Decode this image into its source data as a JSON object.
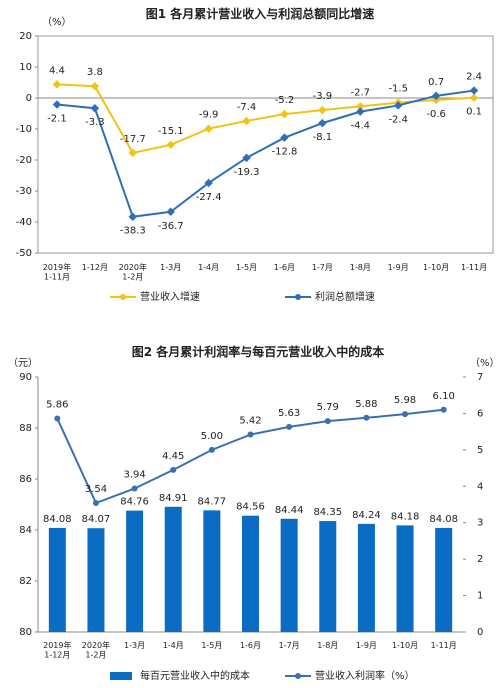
{
  "chart_data": [
    {
      "type": "line",
      "title": "图1  各月累计营业收入与利润总额同比增速",
      "y_label": "（%）",
      "categories": [
        "2019年\n1-11月",
        "1-12月",
        "2020年\n1-2月",
        "1-3月",
        "1-4月",
        "1-5月",
        "1-6月",
        "1-7月",
        "1-8月",
        "1-9月",
        "1-10月",
        "1-11月"
      ],
      "series": [
        {
          "name": "营业收入增速",
          "color": "#f2c314",
          "values": [
            4.4,
            3.8,
            -17.7,
            -15.1,
            -9.9,
            -7.4,
            -5.2,
            -3.9,
            -2.7,
            -1.5,
            -0.6,
            0.1
          ]
        },
        {
          "name": "利润总额增速",
          "color": "#2e6fb7",
          "values": [
            -2.1,
            -3.3,
            -38.3,
            -36.7,
            -27.4,
            -19.3,
            -12.8,
            -8.1,
            -4.4,
            -2.4,
            0.7,
            2.4
          ]
        }
      ],
      "ylim": [
        -50,
        20
      ],
      "yticks": [
        -50,
        -40,
        -30,
        -20,
        -10,
        0,
        10,
        20
      ],
      "legend": "bottom"
    },
    {
      "type": "bar-line",
      "title": "图2  各月累计利润率与每百元营业收入中的成本",
      "y_label": "（元）",
      "y2_label": "（%）",
      "categories": [
        "2019年\n1-12月",
        "2020年\n1-2月",
        "1-3月",
        "1-4月",
        "1-5月",
        "1-6月",
        "1-7月",
        "1-8月",
        "1-9月",
        "1-10月",
        "1-11月"
      ],
      "series": [
        {
          "name": "每百元营业收入中的成本",
          "type": "bar",
          "color": "#0a6cc2",
          "values": [
            84.08,
            84.07,
            84.76,
            84.91,
            84.77,
            84.56,
            84.44,
            84.35,
            84.24,
            84.18,
            84.08
          ]
        },
        {
          "name": "营业收入利润率（%）",
          "type": "line",
          "axis": "y2",
          "color": "#3d6fb0",
          "values": [
            5.86,
            3.54,
            3.94,
            4.45,
            5.0,
            5.42,
            5.63,
            5.79,
            5.88,
            5.98,
            6.1
          ],
          "value_labels": [
            "5.86",
            "3.54",
            "3.94",
            "4.45",
            "5.00",
            "5.42",
            "5.63",
            "5.79",
            "5.88",
            "5.98",
            "6.10"
          ]
        }
      ],
      "ylim": [
        80,
        90
      ],
      "yticks": [
        80,
        82,
        84,
        86,
        88,
        90
      ],
      "y2lim": [
        0,
        7
      ],
      "y2ticks": [
        0,
        1,
        2,
        3,
        4,
        5,
        6,
        7
      ],
      "legend": "bottom"
    }
  ]
}
